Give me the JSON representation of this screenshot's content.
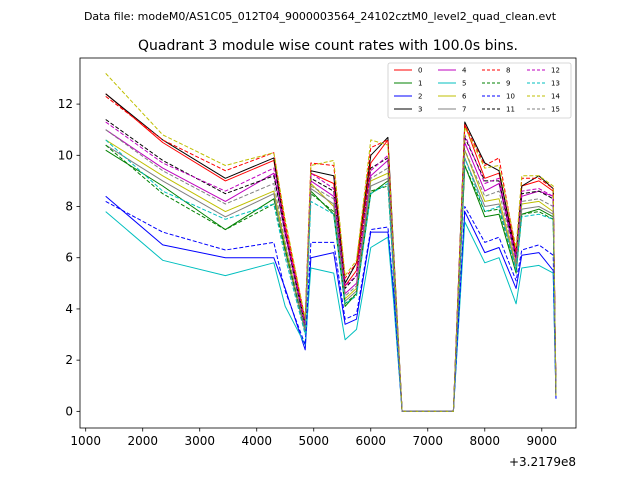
{
  "chart_data": {
    "type": "line",
    "suptitle": "Data file: modeM0/AS1C05_012T04_9000003564_24102cztM0_level2_quad_clean.evt",
    "title": "Quadrant 3 module wise count rates with 100.0s bins.",
    "xlabel": "",
    "ylabel": "",
    "x_offset_label": "+3.2179e8",
    "xlim": [
      900,
      9600
    ],
    "ylim": [
      -0.65,
      13.8
    ],
    "xticks": [
      1000,
      2000,
      3000,
      4000,
      5000,
      6000,
      7000,
      8000,
      9000
    ],
    "yticks": [
      0,
      2,
      4,
      6,
      8,
      10,
      12
    ],
    "x": [
      1350,
      2350,
      3450,
      4300,
      4500,
      4850,
      4950,
      5350,
      5550,
      5750,
      6000,
      6300,
      6400,
      6550,
      7450,
      7650,
      8000,
      8250,
      8550,
      8650,
      8950,
      9200,
      9250
    ],
    "legend": {
      "loc": "upper right",
      "ncol": 4
    },
    "series": [
      {
        "name": "0",
        "color": "#ff0000",
        "dash": "solid",
        "values": [
          12.4,
          10.5,
          9.0,
          9.8,
          7.2,
          3.5,
          9.3,
          8.9,
          4.9,
          5.5,
          9.7,
          10.6,
          6.0,
          0.0,
          0.0,
          11.2,
          9.1,
          9.3,
          6.2,
          8.8,
          9.0,
          8.6,
          0.6
        ]
      },
      {
        "name": "1",
        "color": "#008000",
        "dash": "solid",
        "values": [
          10.2,
          8.8,
          7.1,
          8.3,
          6.4,
          3.2,
          8.6,
          7.7,
          4.1,
          4.6,
          8.5,
          9.0,
          5.6,
          0.0,
          0.0,
          9.6,
          7.6,
          7.7,
          5.4,
          7.7,
          7.9,
          7.6,
          0.6
        ]
      },
      {
        "name": "2",
        "color": "#0000ff",
        "dash": "solid",
        "values": [
          8.4,
          6.5,
          6.0,
          6.0,
          4.8,
          2.4,
          6.0,
          6.2,
          3.4,
          3.6,
          7.0,
          7.0,
          4.6,
          0.0,
          0.0,
          7.8,
          6.2,
          6.4,
          4.8,
          6.1,
          6.2,
          5.5,
          0.5
        ]
      },
      {
        "name": "3",
        "color": "#000000",
        "dash": "solid",
        "values": [
          12.4,
          10.6,
          9.1,
          9.9,
          7.0,
          3.4,
          9.4,
          9.2,
          5.0,
          5.8,
          10.0,
          10.7,
          6.3,
          0.0,
          0.0,
          11.3,
          9.7,
          9.4,
          6.0,
          8.8,
          9.2,
          8.7,
          0.6
        ]
      },
      {
        "name": "4",
        "color": "#bf00bf",
        "dash": "solid",
        "values": [
          11.0,
          9.5,
          8.2,
          9.3,
          6.9,
          3.3,
          9.0,
          8.4,
          4.6,
          5.0,
          9.2,
          9.8,
          5.9,
          0.0,
          0.0,
          10.5,
          8.6,
          8.9,
          5.9,
          8.4,
          8.6,
          8.4,
          0.6
        ]
      },
      {
        "name": "5",
        "color": "#00bfbf",
        "dash": "solid",
        "values": [
          7.8,
          5.9,
          5.3,
          5.8,
          4.1,
          2.6,
          5.6,
          5.4,
          2.8,
          3.2,
          6.4,
          6.8,
          4.3,
          0.0,
          0.0,
          7.4,
          5.8,
          6.0,
          4.2,
          5.6,
          5.7,
          5.4,
          0.5
        ]
      },
      {
        "name": "6",
        "color": "#bfbf00",
        "dash": "solid",
        "values": [
          10.6,
          9.2,
          7.8,
          8.6,
          6.5,
          3.1,
          8.9,
          8.0,
          4.4,
          4.8,
          9.0,
          9.3,
          5.5,
          0.0,
          0.0,
          10.2,
          8.2,
          8.3,
          5.7,
          8.1,
          8.2,
          7.8,
          0.6
        ]
      },
      {
        "name": "7",
        "color": "#808080",
        "dash": "solid",
        "values": [
          10.4,
          9.0,
          7.6,
          8.5,
          6.2,
          3.1,
          8.7,
          8.1,
          4.3,
          4.7,
          8.8,
          9.1,
          5.3,
          0.0,
          0.0,
          9.9,
          8.0,
          8.1,
          5.6,
          7.9,
          8.0,
          7.7,
          0.6
        ]
      },
      {
        "name": "8",
        "color": "#ff0000",
        "dash": "dashed",
        "values": [
          12.3,
          10.6,
          9.4,
          10.1,
          7.4,
          3.6,
          9.7,
          9.6,
          5.2,
          5.8,
          10.3,
          10.6,
          6.1,
          0.0,
          0.0,
          11.2,
          9.6,
          9.9,
          6.2,
          9.1,
          9.1,
          8.7,
          0.6
        ]
      },
      {
        "name": "9",
        "color": "#008000",
        "dash": "dashed",
        "values": [
          10.4,
          8.5,
          7.1,
          8.1,
          6.3,
          3.2,
          8.5,
          7.8,
          4.2,
          4.6,
          8.6,
          8.8,
          5.4,
          0.0,
          0.0,
          9.6,
          7.8,
          7.9,
          5.5,
          7.7,
          7.8,
          7.5,
          0.6
        ]
      },
      {
        "name": "10",
        "color": "#0000ff",
        "dash": "dashed",
        "values": [
          8.2,
          7.0,
          6.3,
          6.6,
          4.7,
          2.6,
          6.6,
          6.6,
          3.6,
          3.8,
          7.1,
          7.2,
          4.7,
          0.0,
          0.0,
          8.0,
          6.6,
          6.8,
          5.1,
          6.3,
          6.5,
          6.1,
          0.5
        ]
      },
      {
        "name": "11",
        "color": "#000000",
        "dash": "dashed",
        "values": [
          11.4,
          9.8,
          8.5,
          9.2,
          7.0,
          3.3,
          9.1,
          8.6,
          4.8,
          5.3,
          9.5,
          9.9,
          5.9,
          0.0,
          0.0,
          10.7,
          9.0,
          9.0,
          6.0,
          8.5,
          8.6,
          8.3,
          0.6
        ]
      },
      {
        "name": "12",
        "color": "#bf00bf",
        "dash": "dashed",
        "values": [
          11.3,
          9.7,
          8.6,
          9.5,
          7.1,
          3.4,
          9.3,
          8.7,
          4.9,
          5.3,
          9.4,
          10.0,
          5.9,
          0.0,
          0.0,
          10.8,
          8.9,
          9.1,
          6.0,
          8.6,
          8.7,
          8.4,
          0.6
        ]
      },
      {
        "name": "13",
        "color": "#00bfbf",
        "dash": "dashed",
        "values": [
          10.6,
          8.6,
          7.5,
          8.1,
          6.0,
          3.0,
          8.2,
          7.7,
          4.2,
          4.5,
          8.5,
          8.9,
          5.4,
          0.0,
          0.0,
          9.9,
          7.8,
          8.0,
          5.5,
          7.6,
          7.7,
          7.5,
          0.6
        ]
      },
      {
        "name": "14",
        "color": "#bfbf00",
        "dash": "dashed",
        "values": [
          13.2,
          10.8,
          9.6,
          10.1,
          7.5,
          3.6,
          9.6,
          9.8,
          5.3,
          5.9,
          10.6,
          10.4,
          6.2,
          0.0,
          0.0,
          11.1,
          9.5,
          9.6,
          6.4,
          9.2,
          9.2,
          8.8,
          0.6
        ]
      },
      {
        "name": "15",
        "color": "#808080",
        "dash": "dashed",
        "values": [
          11.0,
          9.4,
          8.1,
          8.9,
          6.6,
          3.2,
          8.8,
          8.3,
          4.5,
          4.9,
          9.1,
          9.5,
          5.7,
          0.0,
          0.0,
          10.2,
          8.4,
          8.6,
          5.8,
          8.2,
          8.3,
          8.0,
          0.6
        ]
      }
    ]
  }
}
